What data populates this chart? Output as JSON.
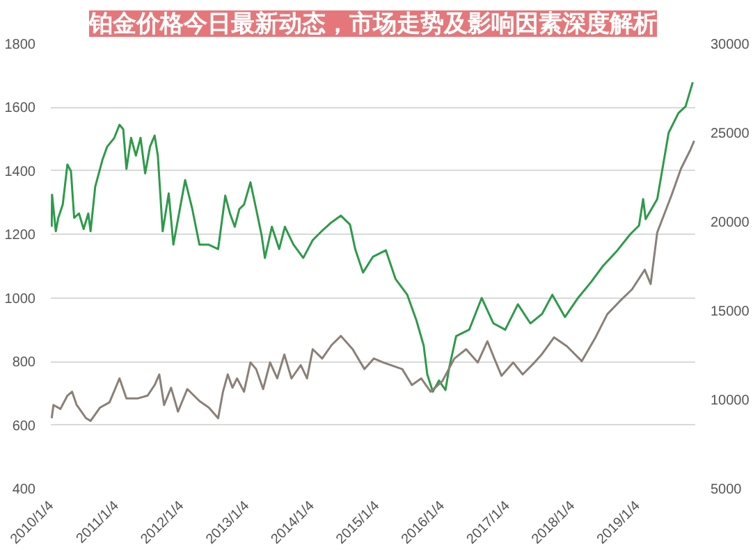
{
  "chart_data": {
    "type": "line",
    "title": "铂金价格今日最新动态，市场走势及影响因素深度解析",
    "grid": "y",
    "xlim": [
      "2009-12-30",
      "2019-11-20"
    ],
    "xticks": [
      {
        "value": "2010-01-04",
        "label": "2010/1/4"
      },
      {
        "value": "2011-01-04",
        "label": "2011/1/4"
      },
      {
        "value": "2012-01-04",
        "label": "2012/1/4"
      },
      {
        "value": "2013-01-04",
        "label": "2013/1/4"
      },
      {
        "value": "2014-01-04",
        "label": "2014/1/4"
      },
      {
        "value": "2015-01-04",
        "label": "2015/1/4"
      },
      {
        "value": "2016-01-04",
        "label": "2016/1/4"
      },
      {
        "value": "2017-01-04",
        "label": "2017/1/4"
      },
      {
        "value": "2018-01-04",
        "label": "2018/1/4"
      },
      {
        "value": "2019-01-04",
        "label": "2019/1/4"
      }
    ],
    "ylim": [
      400,
      1800
    ],
    "yticks": [
      400,
      600,
      800,
      1000,
      1200,
      1400,
      1600,
      1800
    ],
    "y2lim": [
      5000,
      30000
    ],
    "y2ticks": [
      5000,
      10000,
      15000,
      20000,
      25000,
      30000
    ],
    "series": [
      {
        "color": "#2e9a4a",
        "x": [
          "2010-01-04",
          "2010-01-06",
          "2010-01-27",
          "2010-02-10",
          "2010-03-07",
          "2010-04-02",
          "2010-04-22",
          "2010-05-10",
          "2010-06-06",
          "2010-07-02",
          "2010-07-28",
          "2010-08-10",
          "2010-09-05",
          "2010-10-15",
          "2010-11-11",
          "2010-12-21",
          "2011-01-19",
          "2011-02-09",
          "2011-02-27",
          "2011-03-25",
          "2011-04-21",
          "2011-05-17",
          "2011-06-12",
          "2011-07-09",
          "2011-08-04",
          "2011-08-22",
          "2011-09-18",
          "2011-10-22",
          "2011-11-17",
          "2012-01-22",
          "2012-03-02",
          "2012-04-11",
          "2012-05-31",
          "2012-07-25",
          "2012-09-03",
          "2012-09-29",
          "2012-10-26",
          "2012-11-21",
          "2012-12-17",
          "2013-01-22",
          "2013-02-23",
          "2013-03-26",
          "2013-04-13",
          "2013-05-22",
          "2013-07-02",
          "2013-08-03",
          "2013-09-20",
          "2013-11-14",
          "2014-01-06",
          "2014-02-25",
          "2014-04-21",
          "2014-06-13",
          "2014-08-03",
          "2014-09-01",
          "2014-10-15",
          "2014-12-10",
          "2015-02-20",
          "2015-04-15",
          "2015-06-20",
          "2015-08-10",
          "2015-09-20",
          "2015-10-10",
          "2015-11-10",
          "2015-12-15",
          "2016-01-20",
          "2016-02-10",
          "2016-03-20",
          "2016-06-01",
          "2016-08-10",
          "2016-10-15",
          "2016-12-20",
          "2017-03-01",
          "2017-05-10",
          "2017-07-15",
          "2017-09-10",
          "2017-11-20",
          "2018-02-01",
          "2018-04-15",
          "2018-06-20",
          "2018-09-10",
          "2018-11-20",
          "2019-01-09",
          "2019-02-01",
          "2019-02-15",
          "2019-04-21",
          "2019-06-24",
          "2019-08-18",
          "2019-09-27",
          "2019-11-06"
        ],
        "values": [
          1224,
          1325,
          1210,
          1252,
          1294,
          1420,
          1399,
          1252,
          1266,
          1217,
          1266,
          1210,
          1350,
          1434,
          1476,
          1504,
          1545,
          1531,
          1406,
          1504,
          1448,
          1504,
          1392,
          1476,
          1511,
          1448,
          1210,
          1329,
          1168,
          1371,
          1280,
          1168,
          1168,
          1154,
          1322,
          1266,
          1224,
          1280,
          1294,
          1364,
          1280,
          1196,
          1126,
          1224,
          1154,
          1224,
          1168,
          1126,
          1182,
          1210,
          1238,
          1259,
          1231,
          1154,
          1080,
          1130,
          1150,
          1060,
          1010,
          930,
          850,
          760,
          705,
          740,
          710,
          780,
          880,
          900,
          1000,
          920,
          900,
          980,
          920,
          950,
          1010,
          940,
          1000,
          1050,
          1100,
          1150,
          1200,
          1228,
          1311,
          1248,
          1311,
          1520,
          1582,
          1603,
          1679
        ]
      },
      {
        "color": "#8a8077",
        "axis": "y2",
        "x": [
          "2010-01-04",
          "2010-01-14",
          "2010-02-22",
          "2010-04-02",
          "2010-04-28",
          "2010-05-24",
          "2010-07-16",
          "2010-08-10",
          "2010-10-02",
          "2010-11-24",
          "2011-01-19",
          "2011-02-27",
          "2011-05-03",
          "2011-06-25",
          "2011-08-04",
          "2011-08-30",
          "2011-09-26",
          "2011-11-04",
          "2011-12-13",
          "2012-02-03",
          "2012-04-11",
          "2012-06-03",
          "2012-07-25",
          "2012-08-21",
          "2012-09-17",
          "2012-10-13",
          "2012-11-08",
          "2012-12-17",
          "2013-01-22",
          "2013-02-23",
          "2013-04-03",
          "2013-05-12",
          "2013-06-21",
          "2013-07-31",
          "2013-09-09",
          "2013-10-31",
          "2013-12-05",
          "2014-01-06",
          "2014-02-28",
          "2014-04-21",
          "2014-06-13",
          "2014-08-18",
          "2014-10-23",
          "2014-12-15",
          "2015-02-06",
          "2015-05-23",
          "2015-07-16",
          "2015-09-06",
          "2015-10-29",
          "2016-01-03",
          "2016-03-10",
          "2016-05-15",
          "2016-07-19",
          "2016-09-11",
          "2016-10-20",
          "2016-11-29",
          "2017-02-03",
          "2017-03-28",
          "2017-06-02",
          "2017-07-12",
          "2017-09-20",
          "2017-12-01",
          "2018-02-22",
          "2018-05-10",
          "2018-07-15",
          "2018-09-20",
          "2018-12-01",
          "2019-02-10",
          "2019-03-15",
          "2019-04-21",
          "2019-07-10",
          "2019-09-01",
          "2019-10-23",
          "2019-11-14"
        ],
        "values": [
          8954,
          9700,
          9476,
          10222,
          10446,
          9700,
          8954,
          8805,
          9551,
          9849,
          11192,
          10073,
          10073,
          10222,
          10819,
          11416,
          9700,
          10670,
          9327,
          10595,
          9924,
          9551,
          8954,
          10446,
          11416,
          10670,
          11192,
          10446,
          12087,
          11714,
          10595,
          12087,
          11192,
          12535,
          11192,
          11938,
          11192,
          12833,
          12311,
          13057,
          13579,
          12833,
          11714,
          12311,
          12087,
          11714,
          10819,
          11192,
          10446,
          11043,
          12311,
          12833,
          12087,
          13281,
          12311,
          11341,
          12087,
          11416,
          12087,
          12535,
          13500,
          13000,
          12162,
          13500,
          14800,
          15500,
          16200,
          17300,
          16500,
          19393,
          21487,
          22980,
          24024,
          24546
        ]
      }
    ]
  }
}
